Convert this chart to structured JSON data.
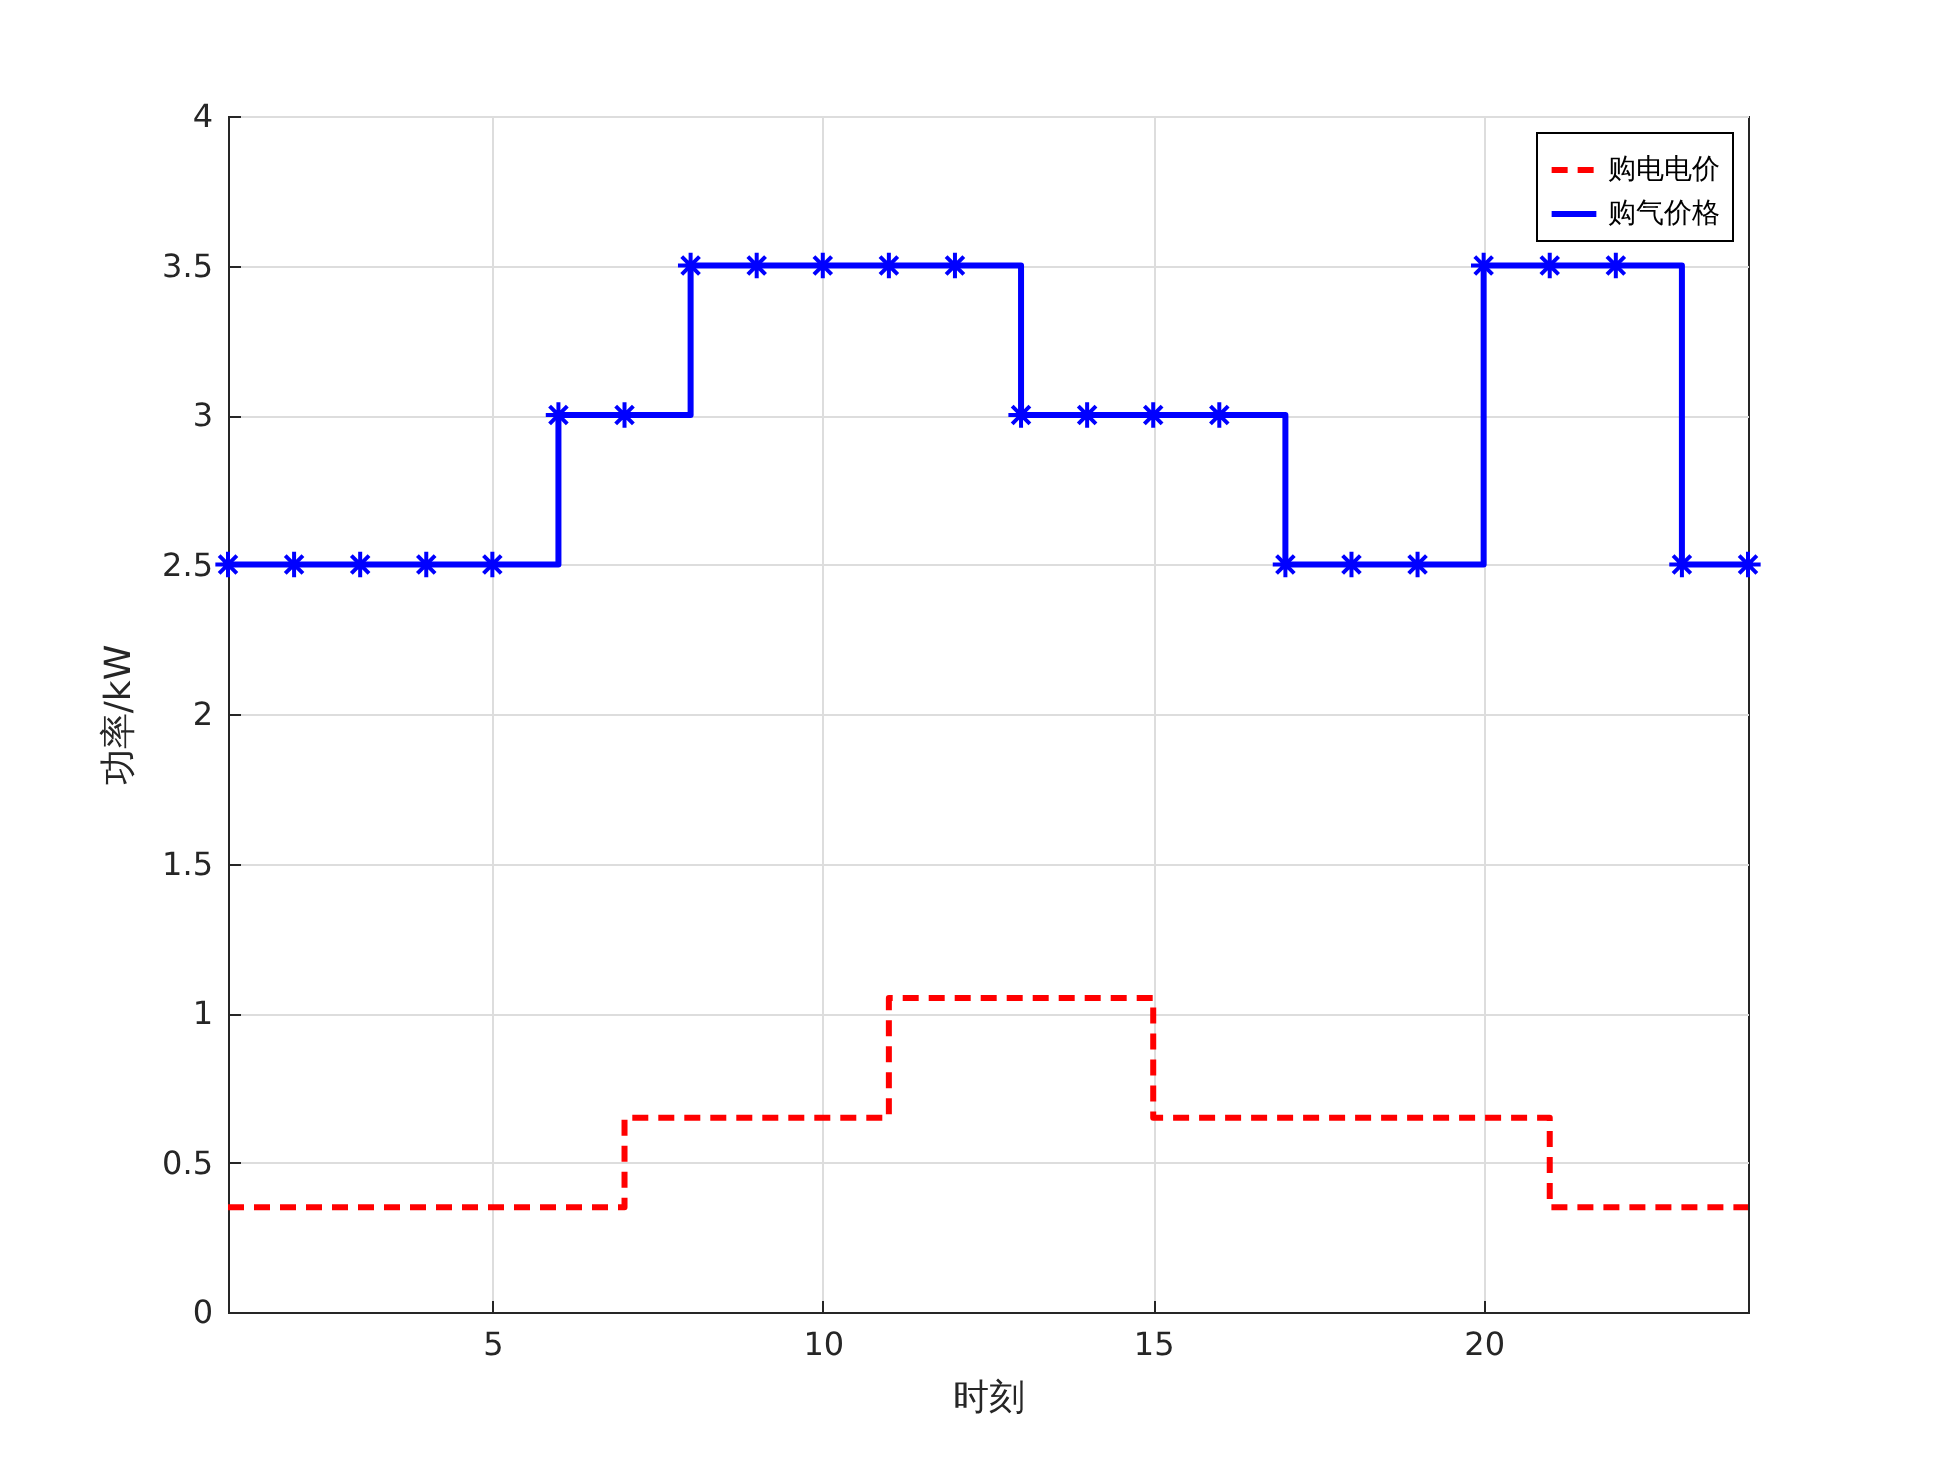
{
  "chart_data": {
    "type": "step",
    "xlabel": "时刻",
    "ylabel": "功率/kW",
    "x": [
      1,
      2,
      3,
      4,
      5,
      6,
      7,
      8,
      9,
      10,
      11,
      12,
      13,
      14,
      15,
      16,
      17,
      18,
      19,
      20,
      21,
      22,
      23,
      24
    ],
    "series": [
      {
        "name": "购电电价",
        "color": "#ff0000",
        "line_style": "dashed",
        "marker": "none",
        "values": [
          0.35,
          0.35,
          0.35,
          0.35,
          0.35,
          0.35,
          0.65,
          0.65,
          0.65,
          0.65,
          1.05,
          1.05,
          1.05,
          1.05,
          0.65,
          0.65,
          0.65,
          0.65,
          0.65,
          0.65,
          0.35,
          0.35,
          0.35,
          0.35
        ]
      },
      {
        "name": "购气价格",
        "color": "#0000ff",
        "line_style": "solid",
        "marker": "cross",
        "values": [
          2.5,
          2.5,
          2.5,
          2.5,
          2.5,
          3,
          3,
          3.5,
          3.5,
          3.5,
          3.5,
          3.5,
          3,
          3,
          3,
          3,
          2.5,
          2.5,
          2.5,
          3.5,
          3.5,
          3.5,
          2.5,
          2.5
        ]
      }
    ],
    "xlim": [
      1,
      24
    ],
    "xticks": [
      5,
      10,
      15,
      20
    ],
    "ylim": [
      0,
      4
    ],
    "yticks": [
      0,
      0.5,
      1,
      1.5,
      2,
      2.5,
      3,
      3.5,
      4
    ],
    "grid": true,
    "legend": "top right"
  }
}
